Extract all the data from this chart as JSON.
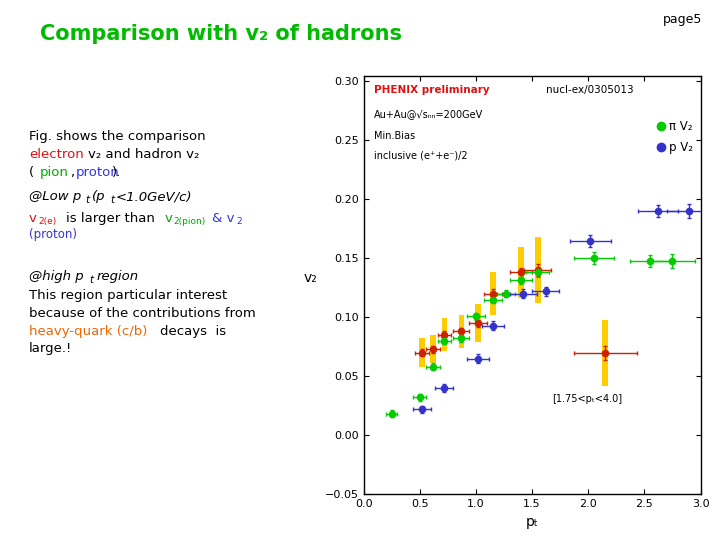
{
  "title": "Comparison with v₂ of hadrons",
  "title_color": "#00bb00",
  "page_label": "page5",
  "background_color": "#f0f0f0",
  "plot": {
    "xlim": [
      0,
      3
    ],
    "ylim": [
      -0.05,
      0.305
    ],
    "xlabel": "pₜ",
    "ylabel": "v₂",
    "xticks": [
      0,
      0.5,
      1.0,
      1.5,
      2.0,
      2.5,
      3.0
    ],
    "yticks": [
      -0.05,
      0,
      0.05,
      0.1,
      0.15,
      0.2,
      0.25,
      0.3
    ],
    "inner_text1": "PHENIX preliminary",
    "inner_text2": "Au+Au@√sₙₙ=200GeV",
    "inner_text3": "Min.Bias",
    "inner_text4": "inclusive (e⁺+e⁻)/2",
    "legend_ref": "nucl-ex/0305013",
    "pion_label": "π V₂",
    "proton_label": "p V₂",
    "region_label": "[1.75<pₜ<4.0]",
    "pion_color": "#00cc00",
    "proton_color": "#3333cc",
    "red_color": "#cc2200",
    "yellow_color": "#ffcc00",
    "pion_data_x": [
      0.25,
      0.5,
      0.62,
      0.72,
      0.87,
      1.0,
      1.15,
      1.27,
      1.4,
      1.55,
      2.05,
      2.55,
      2.75
    ],
    "pion_data_y": [
      0.018,
      0.032,
      0.058,
      0.08,
      0.082,
      0.101,
      0.115,
      0.12,
      0.132,
      0.138,
      0.15,
      0.148,
      0.148
    ],
    "pion_data_xerr": [
      0.05,
      0.06,
      0.06,
      0.06,
      0.07,
      0.08,
      0.08,
      0.08,
      0.1,
      0.1,
      0.18,
      0.18,
      0.2
    ],
    "pion_data_yerr": [
      0.003,
      0.003,
      0.003,
      0.003,
      0.003,
      0.003,
      0.003,
      0.003,
      0.004,
      0.004,
      0.005,
      0.005,
      0.006
    ],
    "proton_data_x": [
      0.52,
      0.72,
      1.02,
      1.15,
      1.42,
      1.62,
      2.02,
      2.62,
      2.9
    ],
    "proton_data_y": [
      0.022,
      0.04,
      0.065,
      0.093,
      0.12,
      0.122,
      0.165,
      0.19,
      0.19
    ],
    "proton_data_xerr": [
      0.08,
      0.08,
      0.1,
      0.1,
      0.12,
      0.12,
      0.18,
      0.18,
      0.2
    ],
    "proton_data_yerr": [
      0.003,
      0.003,
      0.004,
      0.004,
      0.004,
      0.004,
      0.005,
      0.005,
      0.006
    ],
    "red_data_x": [
      0.52,
      0.62,
      0.72,
      0.87,
      1.02,
      1.15,
      1.4,
      1.55,
      2.15
    ],
    "red_data_y": [
      0.07,
      0.073,
      0.085,
      0.088,
      0.095,
      0.12,
      0.138,
      0.14,
      0.07
    ],
    "red_data_xerr": [
      0.06,
      0.06,
      0.06,
      0.07,
      0.08,
      0.08,
      0.1,
      0.12,
      0.28
    ],
    "red_data_yerr": [
      0.003,
      0.003,
      0.003,
      0.003,
      0.003,
      0.004,
      0.004,
      0.005,
      0.006
    ],
    "yellow_data_x": [
      0.52,
      0.62,
      0.72,
      0.87,
      1.02,
      1.15,
      1.4,
      1.55,
      2.15
    ],
    "yellow_data_y": [
      0.07,
      0.073,
      0.085,
      0.088,
      0.095,
      0.12,
      0.138,
      0.14,
      0.07
    ],
    "yellow_data_yerr": [
      0.012,
      0.012,
      0.014,
      0.014,
      0.016,
      0.018,
      0.022,
      0.028,
      0.028
    ]
  }
}
